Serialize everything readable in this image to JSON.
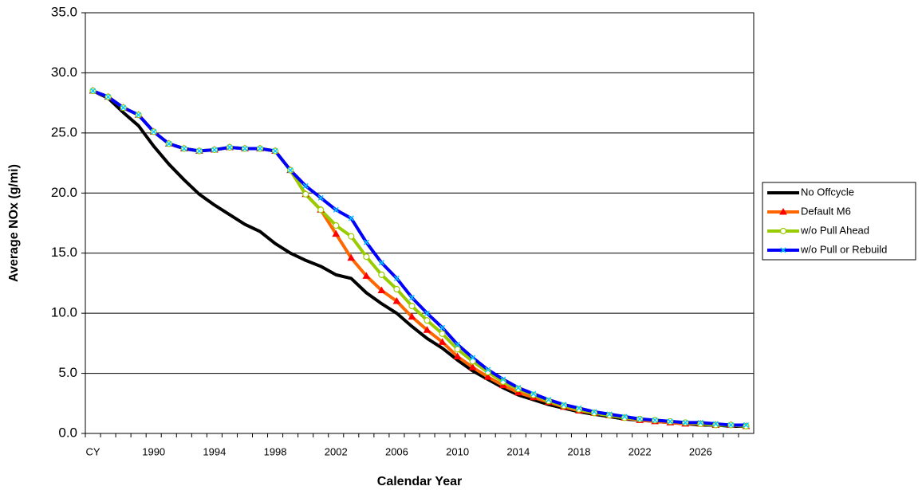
{
  "chart_data": {
    "type": "line",
    "xlabel": "Calendar Year",
    "ylabel": "Average NOx (g/mi)",
    "categories": [
      "CY",
      null,
      null,
      null,
      "1990",
      null,
      null,
      null,
      "1994",
      null,
      null,
      null,
      "1998",
      null,
      null,
      null,
      "2002",
      null,
      null,
      null,
      "2006",
      null,
      null,
      null,
      "2010",
      null,
      null,
      null,
      "2014",
      null,
      null,
      null,
      "2018",
      null,
      null,
      null,
      "2022",
      null,
      null,
      null,
      "2026",
      null,
      null,
      null
    ],
    "ylim": [
      0,
      35
    ],
    "yticks": [
      {
        "value": 0,
        "label": "0.0"
      },
      {
        "value": 5,
        "label": "5.0"
      },
      {
        "value": 10,
        "label": "10.0"
      },
      {
        "value": 15,
        "label": "15.0"
      },
      {
        "value": 20,
        "label": "20.0"
      },
      {
        "value": 25,
        "label": "25.0"
      },
      {
        "value": 30,
        "label": "30.0"
      },
      {
        "value": 35,
        "label": "35.0"
      }
    ],
    "grid": true,
    "legend": "right",
    "series": [
      {
        "name": "No Offcycle",
        "color": "#000000",
        "marker": "none",
        "values": [
          28.5,
          27.9,
          26.7,
          25.6,
          23.9,
          22.4,
          21.1,
          19.9,
          19.0,
          18.2,
          17.4,
          16.8,
          15.8,
          15.0,
          14.4,
          13.9,
          13.2,
          12.9,
          11.7,
          10.8,
          10.0,
          8.9,
          7.9,
          7.1,
          6.1,
          5.2,
          4.5,
          3.8,
          3.2,
          2.8,
          2.4,
          2.1,
          1.8,
          1.6,
          1.4,
          1.2,
          1.1,
          1.0,
          0.9,
          0.8,
          0.7,
          0.7,
          0.6,
          0.6
        ]
      },
      {
        "name": "Default M6",
        "color": "#ff6600",
        "marker": "triangle",
        "marker_color": "#ff0000",
        "values": [
          28.5,
          28.0,
          27.1,
          26.5,
          25.1,
          24.1,
          23.7,
          23.5,
          23.6,
          23.8,
          23.7,
          23.7,
          23.5,
          21.9,
          19.9,
          18.6,
          16.6,
          14.6,
          13.1,
          11.9,
          11.0,
          9.7,
          8.6,
          7.6,
          6.4,
          5.5,
          4.7,
          4.0,
          3.4,
          3.0,
          2.6,
          2.2,
          1.9,
          1.7,
          1.5,
          1.3,
          1.1,
          1.0,
          0.9,
          0.8,
          0.8,
          0.7,
          0.7,
          0.6
        ]
      },
      {
        "name": "w/o Pull Ahead",
        "color": "#99cc00",
        "marker": "circle",
        "marker_color": "#ffffff",
        "values": [
          28.5,
          28.0,
          27.1,
          26.5,
          25.1,
          24.1,
          23.7,
          23.5,
          23.6,
          23.8,
          23.7,
          23.7,
          23.5,
          21.9,
          19.9,
          18.6,
          17.3,
          16.4,
          14.7,
          13.2,
          12.0,
          10.6,
          9.4,
          8.3,
          7.0,
          6.0,
          5.1,
          4.3,
          3.7,
          3.2,
          2.7,
          2.3,
          2.0,
          1.7,
          1.5,
          1.3,
          1.2,
          1.1,
          1.0,
          0.9,
          0.8,
          0.7,
          0.7,
          0.6
        ]
      },
      {
        "name": "w/o Pull or Rebuild",
        "color": "#0000ff",
        "marker": "x",
        "marker_color": "#00ccff",
        "values": [
          28.5,
          28.0,
          27.1,
          26.5,
          25.1,
          24.1,
          23.7,
          23.5,
          23.6,
          23.8,
          23.7,
          23.7,
          23.5,
          21.9,
          20.6,
          19.6,
          18.6,
          17.9,
          15.9,
          14.2,
          12.9,
          11.3,
          10.0,
          8.8,
          7.4,
          6.3,
          5.3,
          4.5,
          3.8,
          3.3,
          2.8,
          2.4,
          2.1,
          1.8,
          1.6,
          1.4,
          1.2,
          1.1,
          1.0,
          0.9,
          0.9,
          0.8,
          0.7,
          0.7
        ]
      }
    ]
  }
}
